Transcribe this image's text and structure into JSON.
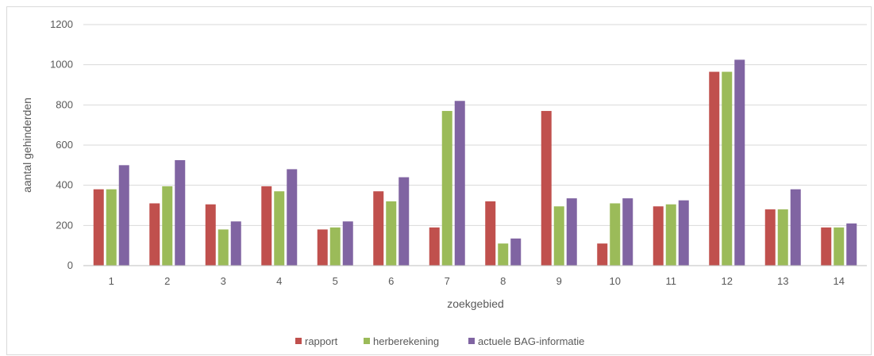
{
  "chart_data": {
    "type": "bar",
    "title": "",
    "xlabel": "zoekgebied",
    "ylabel": "aantal gehinderden",
    "ylim": [
      0,
      1200
    ],
    "yticks": [
      0,
      200,
      400,
      600,
      800,
      1000,
      1200
    ],
    "categories": [
      "1",
      "2",
      "3",
      "4",
      "5",
      "6",
      "7",
      "8",
      "9",
      "10",
      "11",
      "12",
      "13",
      "14"
    ],
    "grid": true,
    "legend_position": "bottom",
    "series": [
      {
        "name": "rapport",
        "color": "#c0504d",
        "values": [
          380,
          310,
          305,
          395,
          180,
          370,
          190,
          320,
          770,
          110,
          295,
          965,
          280,
          190
        ]
      },
      {
        "name": "herberekening",
        "color": "#9bbb59",
        "values": [
          380,
          395,
          180,
          370,
          190,
          320,
          770,
          110,
          295,
          310,
          305,
          965,
          280,
          190
        ]
      },
      {
        "name": "actuele BAG-informatie",
        "color": "#8064a2",
        "values": [
          500,
          525,
          220,
          480,
          220,
          440,
          820,
          135,
          335,
          335,
          325,
          1025,
          380,
          210
        ]
      }
    ]
  }
}
